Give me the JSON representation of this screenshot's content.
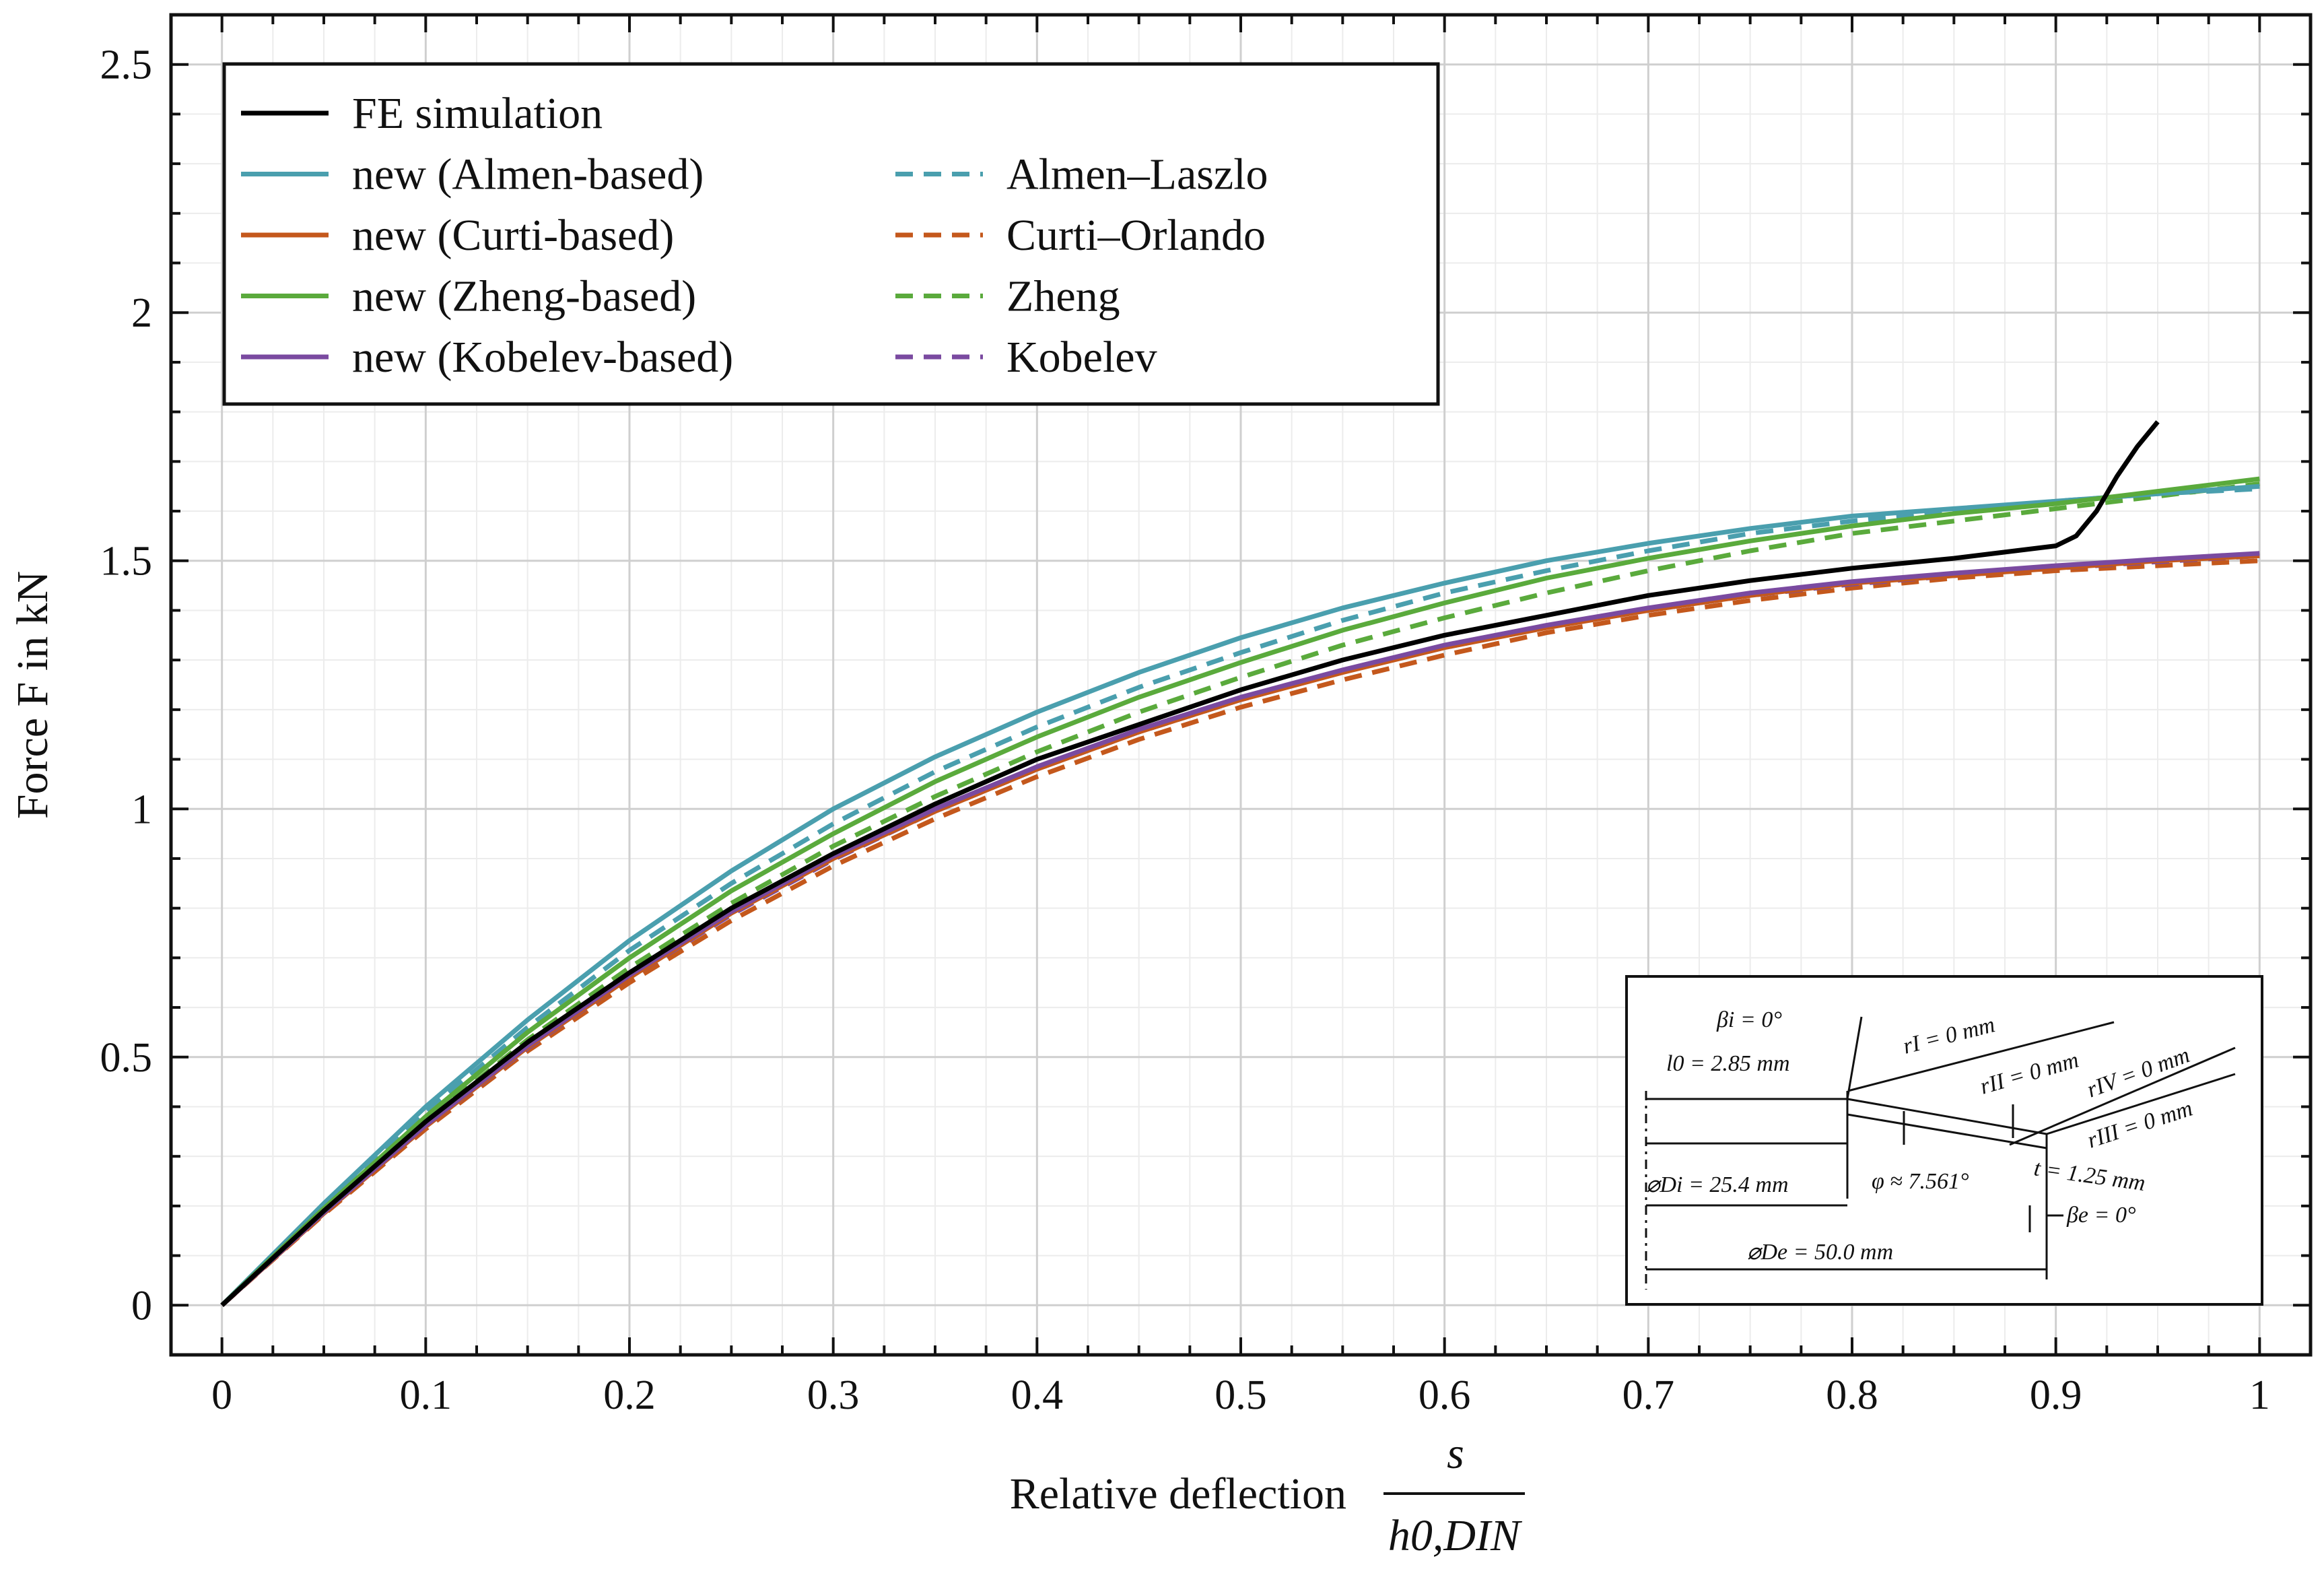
{
  "chart_data": {
    "type": "line",
    "xlabel": "Relative deflection",
    "xlabel_fraction": {
      "numerator": "s",
      "denominator": "h0,DIN"
    },
    "ylabel": "Force F in kN",
    "xlim": [
      -0.025,
      1.025
    ],
    "ylim": [
      -0.1,
      2.6
    ],
    "x_ticks": [
      0,
      0.1,
      0.2,
      0.3,
      0.4,
      0.5,
      0.6,
      0.7,
      0.8,
      0.9,
      1
    ],
    "x_tick_labels": [
      "0",
      "0.1",
      "0.2",
      "0.3",
      "0.4",
      "0.5",
      "0.6",
      "0.7",
      "0.8",
      "0.9",
      "1"
    ],
    "y_ticks": [
      0,
      0.5,
      1,
      1.5,
      2,
      2.5
    ],
    "y_tick_labels": [
      "0",
      "0.5",
      "1",
      "1.5",
      "2",
      "2.5"
    ],
    "grid": true,
    "legend_position": "top-left",
    "series": [
      {
        "name": "FE simulation",
        "style": "solid",
        "color": "#000000",
        "x": [
          0,
          0.05,
          0.1,
          0.15,
          0.2,
          0.25,
          0.3,
          0.35,
          0.4,
          0.45,
          0.5,
          0.55,
          0.6,
          0.65,
          0.7,
          0.75,
          0.8,
          0.85,
          0.9,
          0.91,
          0.92,
          0.93,
          0.94,
          0.95
        ],
        "y": [
          0,
          0.19,
          0.37,
          0.53,
          0.67,
          0.8,
          0.91,
          1.01,
          1.1,
          1.17,
          1.24,
          1.3,
          1.35,
          1.39,
          1.43,
          1.46,
          1.485,
          1.505,
          1.53,
          1.55,
          1.6,
          1.67,
          1.73,
          1.78
        ]
      },
      {
        "name": "new (Almen-based)",
        "style": "solid",
        "color": "#4a9fae",
        "x": [
          0,
          0.05,
          0.1,
          0.15,
          0.2,
          0.25,
          0.3,
          0.35,
          0.4,
          0.45,
          0.5,
          0.55,
          0.6,
          0.65,
          0.7,
          0.75,
          0.8,
          0.85,
          0.9,
          0.95,
          1
        ],
        "y": [
          0,
          0.205,
          0.4,
          0.575,
          0.735,
          0.875,
          1.0,
          1.105,
          1.195,
          1.275,
          1.345,
          1.405,
          1.455,
          1.5,
          1.535,
          1.565,
          1.59,
          1.605,
          1.62,
          1.635,
          1.65
        ]
      },
      {
        "name": "new (Curti-based)",
        "style": "solid",
        "color": "#c4581c",
        "x": [
          0,
          0.05,
          0.1,
          0.15,
          0.2,
          0.25,
          0.3,
          0.35,
          0.4,
          0.45,
          0.5,
          0.55,
          0.6,
          0.65,
          0.7,
          0.75,
          0.8,
          0.85,
          0.9,
          0.95,
          1
        ],
        "y": [
          0,
          0.185,
          0.36,
          0.52,
          0.66,
          0.79,
          0.9,
          0.995,
          1.08,
          1.155,
          1.22,
          1.275,
          1.325,
          1.365,
          1.4,
          1.43,
          1.455,
          1.47,
          1.485,
          1.5,
          1.51
        ]
      },
      {
        "name": "new (Zheng-based)",
        "style": "solid",
        "color": "#5aaa3c",
        "x": [
          0,
          0.05,
          0.1,
          0.15,
          0.2,
          0.25,
          0.3,
          0.35,
          0.4,
          0.45,
          0.5,
          0.55,
          0.6,
          0.65,
          0.7,
          0.75,
          0.8,
          0.85,
          0.9,
          0.95,
          1
        ],
        "y": [
          0,
          0.195,
          0.38,
          0.55,
          0.7,
          0.835,
          0.95,
          1.055,
          1.145,
          1.225,
          1.295,
          1.36,
          1.415,
          1.465,
          1.505,
          1.54,
          1.57,
          1.595,
          1.615,
          1.64,
          1.665
        ]
      },
      {
        "name": "new (Kobelev-based)",
        "style": "solid",
        "color": "#7a4aa0",
        "x": [
          0,
          0.05,
          0.1,
          0.15,
          0.2,
          0.25,
          0.3,
          0.35,
          0.4,
          0.45,
          0.5,
          0.55,
          0.6,
          0.65,
          0.7,
          0.75,
          0.8,
          0.85,
          0.9,
          0.95,
          1
        ],
        "y": [
          0,
          0.187,
          0.363,
          0.523,
          0.665,
          0.793,
          0.905,
          1.0,
          1.085,
          1.16,
          1.225,
          1.28,
          1.33,
          1.37,
          1.405,
          1.435,
          1.458,
          1.475,
          1.49,
          1.503,
          1.515
        ]
      },
      {
        "name": "Almen–Laszlo",
        "style": "dashed",
        "color": "#4a9fae",
        "x": [
          0,
          0.05,
          0.1,
          0.15,
          0.2,
          0.25,
          0.3,
          0.35,
          0.4,
          0.45,
          0.5,
          0.55,
          0.6,
          0.65,
          0.7,
          0.75,
          0.8,
          0.85,
          0.9,
          0.95,
          1
        ],
        "y": [
          0,
          0.2,
          0.39,
          0.56,
          0.715,
          0.85,
          0.97,
          1.075,
          1.165,
          1.245,
          1.315,
          1.38,
          1.435,
          1.48,
          1.52,
          1.555,
          1.58,
          1.6,
          1.62,
          1.635,
          1.645
        ]
      },
      {
        "name": "Curti–Orlando",
        "style": "dashed",
        "color": "#c4581c",
        "x": [
          0,
          0.05,
          0.1,
          0.15,
          0.2,
          0.25,
          0.3,
          0.35,
          0.4,
          0.45,
          0.5,
          0.55,
          0.6,
          0.65,
          0.7,
          0.75,
          0.8,
          0.85,
          0.9,
          0.95,
          1
        ],
        "y": [
          0,
          0.183,
          0.355,
          0.512,
          0.65,
          0.775,
          0.885,
          0.98,
          1.065,
          1.14,
          1.205,
          1.26,
          1.31,
          1.355,
          1.39,
          1.42,
          1.445,
          1.465,
          1.48,
          1.49,
          1.5
        ]
      },
      {
        "name": "Zheng",
        "style": "dashed",
        "color": "#5aaa3c",
        "x": [
          0,
          0.05,
          0.1,
          0.15,
          0.2,
          0.25,
          0.3,
          0.35,
          0.4,
          0.45,
          0.5,
          0.55,
          0.6,
          0.65,
          0.7,
          0.75,
          0.8,
          0.85,
          0.9,
          0.95,
          1
        ],
        "y": [
          0,
          0.19,
          0.37,
          0.535,
          0.68,
          0.81,
          0.925,
          1.025,
          1.115,
          1.195,
          1.265,
          1.33,
          1.385,
          1.435,
          1.48,
          1.52,
          1.555,
          1.58,
          1.605,
          1.63,
          1.655
        ]
      },
      {
        "name": "Kobelev",
        "style": "dashed",
        "color": "#7a4aa0",
        "x": [
          0,
          0.05,
          0.1,
          0.15,
          0.2,
          0.25,
          0.3,
          0.35,
          0.4,
          0.45,
          0.5,
          0.55,
          0.6,
          0.65,
          0.7,
          0.75,
          0.8,
          0.85,
          0.9,
          0.95,
          1
        ],
        "y": [
          0,
          0.186,
          0.36,
          0.518,
          0.66,
          0.787,
          0.898,
          0.995,
          1.08,
          1.155,
          1.22,
          1.276,
          1.325,
          1.366,
          1.4,
          1.43,
          1.453,
          1.47,
          1.485,
          1.498,
          1.51
        ]
      }
    ],
    "legend": {
      "left_column": [
        "FE simulation",
        "new (Almen-based)",
        "new (Curti-based)",
        "new (Zheng-based)",
        "new (Kobelev-based)"
      ],
      "right_column": [
        "Almen–Laszlo",
        "Curti–Orlando",
        "Zheng",
        "Kobelev"
      ]
    },
    "inset": {
      "labels": {
        "beta_i": "βi = 0°",
        "l0": "l0 = 2.85 mm",
        "r1": "rI = 0 mm",
        "r2": "rII = 0 mm",
        "r4": "rIV = 0 mm",
        "r3": "rIII = 0 mm",
        "Di": "⌀Di = 25.4 mm",
        "phi": "φ ≈ 7.561°",
        "t": "t = 1.25 mm",
        "beta_e": "βe = 0°",
        "De": "⌀De = 50.0 mm"
      }
    }
  }
}
